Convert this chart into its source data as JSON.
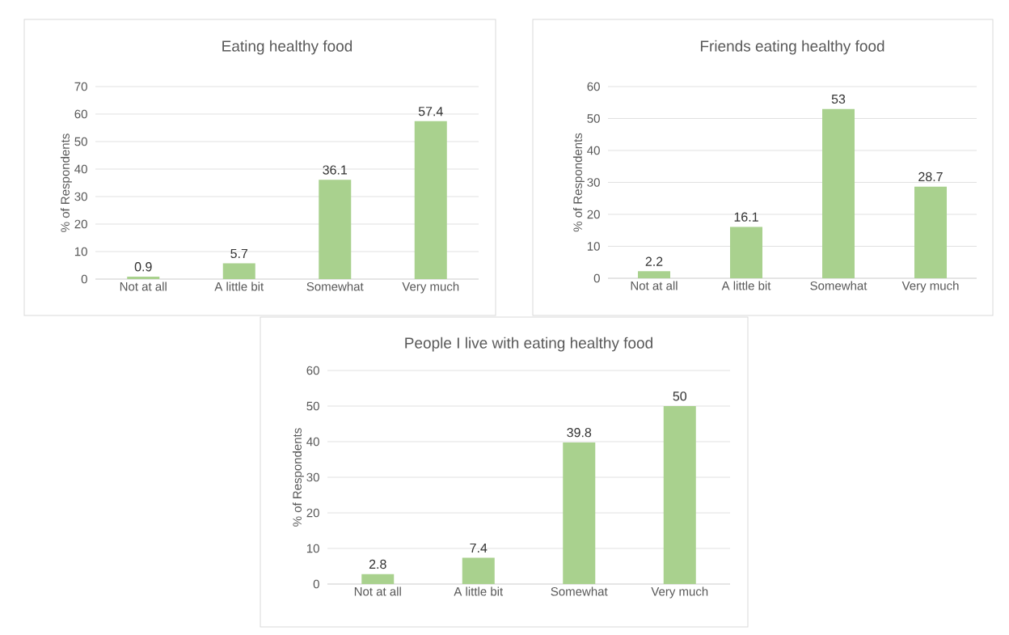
{
  "chart_data": [
    {
      "type": "bar",
      "title": "Eating healthy food",
      "ylabel": "% of Respondents",
      "categories": [
        "Not at all",
        "A little bit",
        "Somewhat",
        "Very much"
      ],
      "values": [
        0.9,
        5.7,
        36.1,
        57.4
      ],
      "color": "#a9d18e",
      "ylim": [
        0,
        70
      ],
      "yticks": [
        0,
        10,
        20,
        30,
        40,
        50,
        60,
        70
      ],
      "grid": "y",
      "data_labels": true
    },
    {
      "type": "bar",
      "title": "Friends eating healthy food",
      "ylabel": "% of Respondents",
      "categories": [
        "Not at all",
        "A little bit",
        "Somewhat",
        "Very much"
      ],
      "values": [
        2.2,
        16.1,
        53,
        28.7
      ],
      "color": "#a9d18e",
      "ylim": [
        0,
        60
      ],
      "yticks": [
        0,
        10,
        20,
        30,
        40,
        50,
        60
      ],
      "grid": "y",
      "data_labels": true
    },
    {
      "type": "bar",
      "title": "People I live with eating healthy food",
      "ylabel": "% of Respondents",
      "categories": [
        "Not at all",
        "A little bit",
        "Somewhat",
        "Very much"
      ],
      "values": [
        2.8,
        7.4,
        39.8,
        50
      ],
      "color": "#a9d18e",
      "ylim": [
        0,
        60
      ],
      "yticks": [
        0,
        10,
        20,
        30,
        40,
        50,
        60
      ],
      "grid": "y",
      "data_labels": true
    }
  ]
}
